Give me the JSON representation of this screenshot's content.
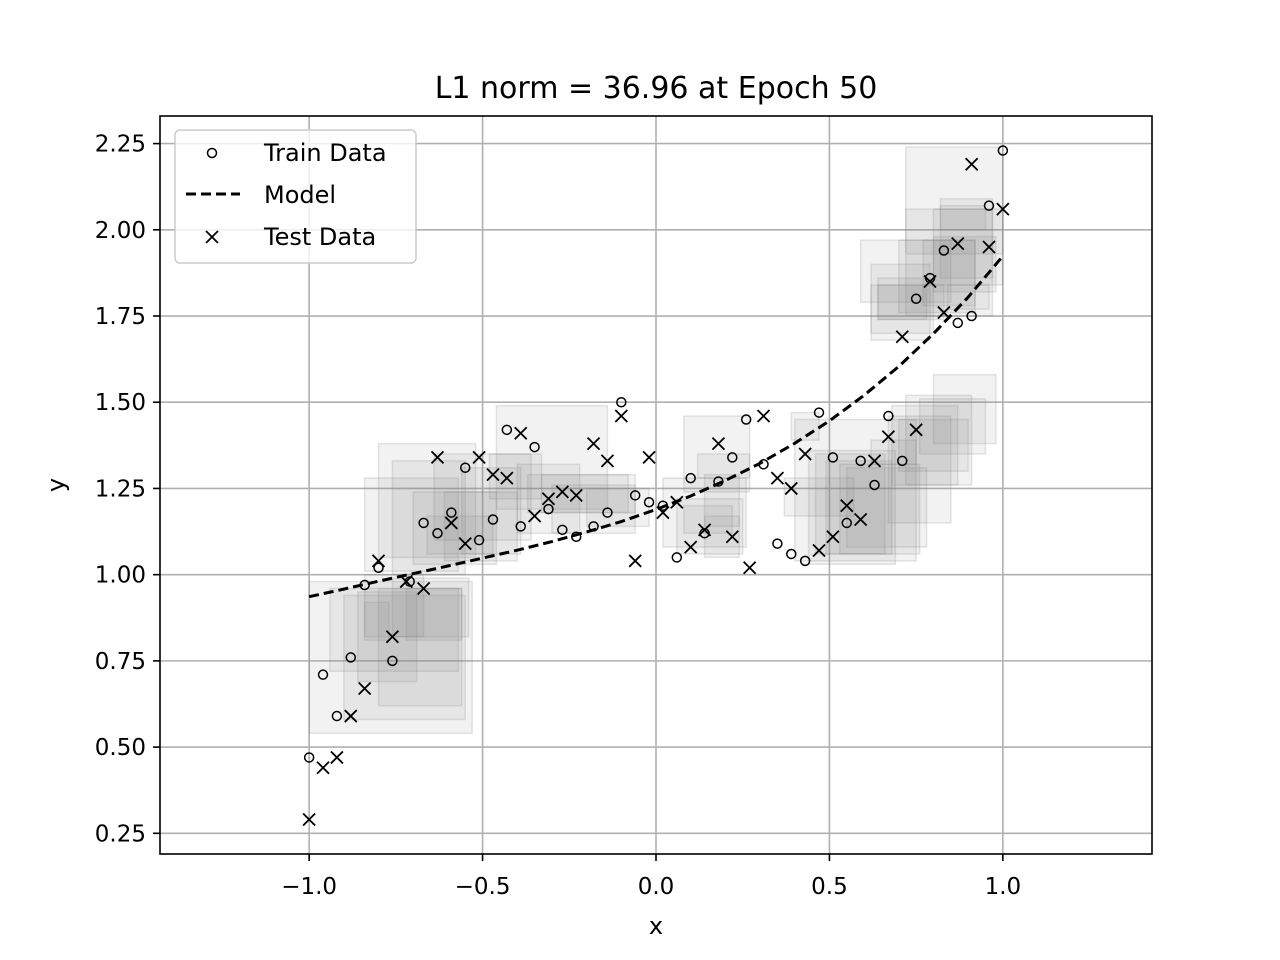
{
  "chart_data": {
    "type": "scatter",
    "title": "L1 norm = 36.96 at Epoch 50",
    "xlabel": "x",
    "ylabel": "y",
    "xlim": [
      -1.43,
      1.43
    ],
    "ylim": [
      0.19,
      2.33
    ],
    "x_ticks": [
      -1.0,
      -0.5,
      0.0,
      0.5,
      1.0
    ],
    "y_ticks": [
      0.25,
      0.5,
      0.75,
      1.0,
      1.25,
      1.5,
      1.75,
      2.0,
      2.25
    ],
    "x_tick_labels": [
      "−1.0",
      "−0.5",
      "0.0",
      "0.5",
      "1.0"
    ],
    "y_tick_labels": [
      "0.25",
      "0.50",
      "0.75",
      "1.00",
      "1.25",
      "1.50",
      "1.75",
      "2.00",
      "2.25"
    ],
    "grid": true,
    "legend": {
      "position": "top-left",
      "entries": [
        {
          "label": "Train Data",
          "marker": "circle"
        },
        {
          "label": "Model",
          "marker": "dashed-line"
        },
        {
          "label": "Test Data",
          "marker": "x"
        }
      ]
    },
    "colors": {
      "marker": "#000000",
      "grid": "#b0b0b0",
      "box_fill": "#808080",
      "box_stroke": "#808080"
    },
    "series": [
      {
        "name": "Train Data",
        "marker": "circle",
        "points": [
          [
            -1.0,
            0.47
          ],
          [
            -0.96,
            0.71
          ],
          [
            -0.92,
            0.59
          ],
          [
            -0.88,
            0.76
          ],
          [
            -0.84,
            0.97
          ],
          [
            -0.8,
            1.02
          ],
          [
            -0.76,
            0.75
          ],
          [
            -0.71,
            0.98
          ],
          [
            -0.67,
            1.15
          ],
          [
            -0.63,
            1.12
          ],
          [
            -0.59,
            1.18
          ],
          [
            -0.55,
            1.31
          ],
          [
            -0.51,
            1.1
          ],
          [
            -0.47,
            1.16
          ],
          [
            -0.43,
            1.42
          ],
          [
            -0.39,
            1.14
          ],
          [
            -0.35,
            1.37
          ],
          [
            -0.31,
            1.19
          ],
          [
            -0.27,
            1.13
          ],
          [
            -0.23,
            1.11
          ],
          [
            -0.18,
            1.14
          ],
          [
            -0.14,
            1.18
          ],
          [
            -0.1,
            1.5
          ],
          [
            -0.06,
            1.23
          ],
          [
            -0.02,
            1.21
          ],
          [
            0.02,
            1.2
          ],
          [
            0.06,
            1.05
          ],
          [
            0.1,
            1.28
          ],
          [
            0.14,
            1.12
          ],
          [
            0.18,
            1.27
          ],
          [
            0.22,
            1.34
          ],
          [
            0.26,
            1.45
          ],
          [
            0.31,
            1.32
          ],
          [
            0.35,
            1.09
          ],
          [
            0.39,
            1.06
          ],
          [
            0.43,
            1.04
          ],
          [
            0.47,
            1.47
          ],
          [
            0.51,
            1.34
          ],
          [
            0.55,
            1.15
          ],
          [
            0.59,
            1.33
          ],
          [
            0.63,
            1.26
          ],
          [
            0.67,
            1.46
          ],
          [
            0.71,
            1.33
          ],
          [
            0.75,
            1.8
          ],
          [
            0.79,
            1.86
          ],
          [
            0.83,
            1.94
          ],
          [
            0.87,
            1.73
          ],
          [
            0.91,
            1.75
          ],
          [
            0.96,
            2.07
          ],
          [
            1.0,
            2.23
          ]
        ]
      },
      {
        "name": "Test Data",
        "marker": "x",
        "points": [
          [
            -1.0,
            0.29
          ],
          [
            -0.96,
            0.44
          ],
          [
            -0.92,
            0.47
          ],
          [
            -0.88,
            0.59
          ],
          [
            -0.84,
            0.67
          ],
          [
            -0.8,
            1.04
          ],
          [
            -0.76,
            0.82
          ],
          [
            -0.72,
            0.98
          ],
          [
            -0.67,
            0.96
          ],
          [
            -0.63,
            1.34
          ],
          [
            -0.59,
            1.15
          ],
          [
            -0.55,
            1.09
          ],
          [
            -0.51,
            1.34
          ],
          [
            -0.47,
            1.29
          ],
          [
            -0.43,
            1.28
          ],
          [
            -0.39,
            1.41
          ],
          [
            -0.35,
            1.17
          ],
          [
            -0.31,
            1.22
          ],
          [
            -0.27,
            1.24
          ],
          [
            -0.23,
            1.23
          ],
          [
            -0.18,
            1.38
          ],
          [
            -0.14,
            1.33
          ],
          [
            -0.1,
            1.46
          ],
          [
            -0.06,
            1.04
          ],
          [
            -0.02,
            1.34
          ],
          [
            0.02,
            1.18
          ],
          [
            0.06,
            1.21
          ],
          [
            0.1,
            1.08
          ],
          [
            0.14,
            1.13
          ],
          [
            0.18,
            1.38
          ],
          [
            0.22,
            1.11
          ],
          [
            0.27,
            1.02
          ],
          [
            0.31,
            1.46
          ],
          [
            0.35,
            1.28
          ],
          [
            0.39,
            1.25
          ],
          [
            0.43,
            1.35
          ],
          [
            0.47,
            1.07
          ],
          [
            0.51,
            1.11
          ],
          [
            0.55,
            1.2
          ],
          [
            0.59,
            1.16
          ],
          [
            0.63,
            1.33
          ],
          [
            0.67,
            1.4
          ],
          [
            0.71,
            1.69
          ],
          [
            0.75,
            1.42
          ],
          [
            0.79,
            1.85
          ],
          [
            0.83,
            1.76
          ],
          [
            0.87,
            1.96
          ],
          [
            0.91,
            2.19
          ],
          [
            0.96,
            1.95
          ],
          [
            1.0,
            2.06
          ]
        ]
      },
      {
        "name": "Model",
        "line": "dashed",
        "points": [
          [
            -1.0,
            0.936
          ],
          [
            -0.9,
            0.958
          ],
          [
            -0.8,
            0.981
          ],
          [
            -0.7,
            1.003
          ],
          [
            -0.6,
            1.025
          ],
          [
            -0.5,
            1.048
          ],
          [
            -0.4,
            1.071
          ],
          [
            -0.3,
            1.096
          ],
          [
            -0.2,
            1.124
          ],
          [
            -0.1,
            1.154
          ],
          [
            0.0,
            1.189
          ],
          [
            0.1,
            1.228
          ],
          [
            0.2,
            1.273
          ],
          [
            0.3,
            1.323
          ],
          [
            0.4,
            1.381
          ],
          [
            0.5,
            1.446
          ],
          [
            0.6,
            1.52
          ],
          [
            0.7,
            1.604
          ],
          [
            0.8,
            1.699
          ],
          [
            0.9,
            1.805
          ],
          [
            1.0,
            1.924
          ]
        ]
      }
    ],
    "boxes": [
      [
        -1.0,
        0.54,
        -0.53,
        0.98
      ],
      [
        -0.94,
        0.72,
        -0.57,
        0.96
      ],
      [
        -0.9,
        0.58,
        -0.55,
        0.94
      ],
      [
        -0.86,
        0.69,
        -0.69,
        0.95
      ],
      [
        -0.84,
        0.82,
        -0.67,
        1.0
      ],
      [
        -0.8,
        0.62,
        -0.56,
        0.96
      ],
      [
        -0.84,
        0.81,
        -0.77,
        0.92
      ],
      [
        -0.76,
        0.82,
        -0.54,
        0.99
      ],
      [
        -0.72,
        0.81,
        -0.56,
        0.96
      ],
      [
        -0.84,
        1.01,
        -0.57,
        1.28
      ],
      [
        -0.8,
        1.05,
        -0.52,
        1.38
      ],
      [
        -0.76,
        1.0,
        -0.55,
        1.33
      ],
      [
        -0.7,
        1.03,
        -0.46,
        1.24
      ],
      [
        -0.66,
        1.06,
        -0.47,
        1.17
      ],
      [
        -0.61,
        1.04,
        -0.4,
        1.24
      ],
      [
        -0.64,
        1.1,
        -0.36,
        1.35
      ],
      [
        -0.56,
        1.06,
        -0.39,
        1.31
      ],
      [
        -0.48,
        1.22,
        -0.33,
        1.35
      ],
      [
        -0.46,
        1.19,
        -0.14,
        1.49
      ],
      [
        -0.4,
        1.12,
        -0.22,
        1.32
      ],
      [
        -0.37,
        1.18,
        -0.06,
        1.29
      ],
      [
        -0.33,
        1.18,
        -0.08,
        1.29
      ],
      [
        -0.3,
        1.12,
        -0.06,
        1.26
      ],
      [
        -0.2,
        1.14,
        -0.02,
        1.25
      ],
      [
        0.02,
        1.08,
        0.26,
        1.28
      ],
      [
        0.06,
        1.06,
        0.25,
        1.22
      ],
      [
        0.08,
        1.12,
        0.22,
        1.2
      ],
      [
        0.14,
        1.05,
        0.24,
        1.17
      ],
      [
        0.14,
        1.14,
        0.24,
        1.29
      ],
      [
        0.08,
        1.24,
        0.27,
        1.46
      ],
      [
        0.12,
        1.28,
        0.27,
        1.35
      ],
      [
        0.37,
        1.17,
        0.57,
        1.28
      ],
      [
        0.39,
        1.39,
        0.47,
        1.47
      ],
      [
        0.4,
        1.04,
        0.75,
        1.45
      ],
      [
        0.44,
        1.03,
        0.69,
        1.36
      ],
      [
        0.46,
        1.06,
        0.66,
        1.35
      ],
      [
        0.49,
        1.06,
        0.68,
        1.33
      ],
      [
        0.53,
        1.06,
        0.76,
        1.32
      ],
      [
        0.55,
        1.08,
        0.78,
        1.31
      ],
      [
        0.62,
        1.32,
        0.75,
        1.39
      ],
      [
        0.67,
        1.15,
        0.85,
        1.46
      ],
      [
        0.68,
        1.26,
        0.87,
        1.49
      ],
      [
        0.7,
        1.3,
        0.9,
        1.45
      ],
      [
        0.72,
        1.26,
        0.91,
        1.52
      ],
      [
        0.76,
        1.35,
        0.95,
        1.51
      ],
      [
        0.8,
        1.38,
        0.98,
        1.58
      ],
      [
        0.59,
        1.79,
        0.85,
        1.97
      ],
      [
        0.62,
        1.68,
        0.79,
        1.9
      ],
      [
        0.64,
        1.74,
        0.78,
        1.86
      ],
      [
        0.62,
        1.7,
        0.8,
        1.84
      ],
      [
        0.64,
        1.74,
        0.83,
        1.84
      ],
      [
        0.7,
        1.76,
        0.92,
        1.97
      ],
      [
        0.77,
        1.78,
        0.92,
        1.97
      ],
      [
        0.8,
        1.82,
        0.98,
        1.98
      ],
      [
        0.82,
        1.86,
        0.97,
        2.09
      ],
      [
        0.72,
        1.75,
        0.97,
        2.06
      ],
      [
        0.8,
        1.84,
        1.0,
        2.06
      ],
      [
        0.72,
        1.93,
        1.0,
        2.24
      ],
      [
        0.82,
        2.0,
        0.95,
        2.07
      ],
      [
        0.84,
        1.77,
        0.96,
        1.84
      ]
    ]
  }
}
